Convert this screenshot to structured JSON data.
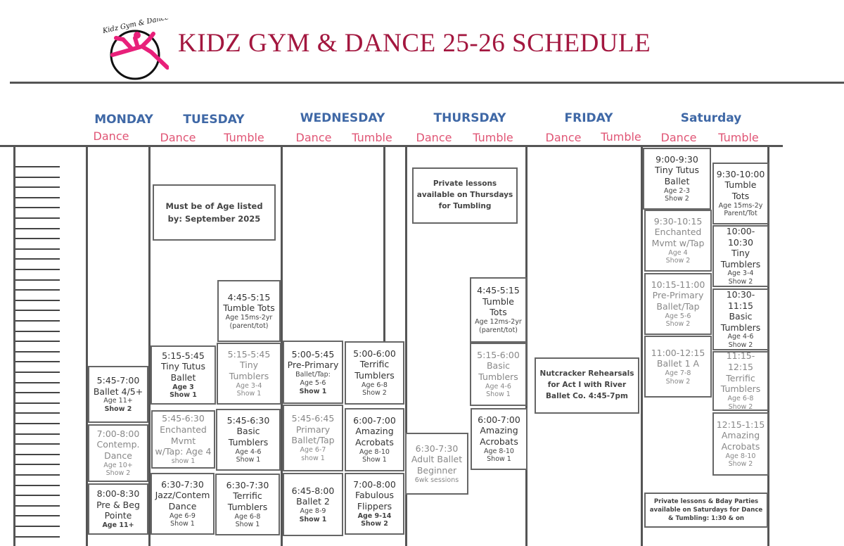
{
  "header": {
    "logo_text": "Kidz Gym & Dance",
    "title": "KIDZ GYM & DANCE 25-26 SCHEDULE"
  },
  "colors": {
    "title": "#a3173f",
    "day": "#3f68a6",
    "sub": "#e05575",
    "logo_pink": "#e8207a"
  },
  "days": [
    {
      "name": "MONDAY",
      "subs": [
        "Dance"
      ]
    },
    {
      "name": "TUESDAY",
      "subs": [
        "Dance",
        "Tumble"
      ]
    },
    {
      "name": "WEDNESDAY",
      "subs": [
        "Dance",
        "Tumble"
      ]
    },
    {
      "name": "THURSDAY",
      "subs": [
        "Dance",
        "Tumble"
      ]
    },
    {
      "name": "FRIDAY",
      "subs": [
        "Dance",
        "Tumble"
      ]
    },
    {
      "name": "Saturday",
      "subs": [
        "Dance",
        "Tumble"
      ]
    }
  ],
  "notes": {
    "tuesday": "Must be of Age listed by: September  2025",
    "thursday": "Private lessons available on Thursdays for Tumbling",
    "friday": "Nutcracker Rehearsals for Act I with River Ballet Co. 4:45-7pm",
    "saturday": "Private lessons & Bday Parties available on Saturdays for Dance & Tumbling: 1:30 & on"
  },
  "classes": [
    {
      "day": "Monday",
      "type": "Dance",
      "lines": [
        "5:45-7:00",
        "Ballet 4/5+",
        "Age 11+",
        "Show 2"
      ]
    },
    {
      "day": "Monday",
      "type": "Dance",
      "lines": [
        "7:00-8:00",
        "Contemp.",
        "Dance",
        "Age 10+",
        "Show 2"
      ]
    },
    {
      "day": "Monday",
      "type": "Dance",
      "lines": [
        "8:00-8:30",
        "Pre & Beg",
        "Pointe",
        "Age 11+"
      ]
    },
    {
      "day": "Tuesday",
      "type": "Dance",
      "lines": [
        "5:15-5:45",
        "Tiny Tutus",
        "Ballet",
        "Age 3",
        "Show 1"
      ]
    },
    {
      "day": "Tuesday",
      "type": "Dance",
      "lines": [
        "5:45-6:30",
        "Enchanted",
        "Mvmt",
        "w/Tap: Age 4",
        "show 1"
      ]
    },
    {
      "day": "Tuesday",
      "type": "Dance",
      "lines": [
        "6:30-7:30",
        "Jazz/Contem",
        "Dance",
        "Age 6-9",
        "Show 1"
      ]
    },
    {
      "day": "Tuesday",
      "type": "Tumble",
      "lines": [
        "4:45-5:15",
        "Tumble Tots",
        "Age 15ms-2yr",
        "(parent/tot)"
      ]
    },
    {
      "day": "Tuesday",
      "type": "Tumble",
      "lines": [
        "5:15-5:45",
        "Tiny",
        "Tumblers",
        "Age 3-4",
        "Show 1"
      ]
    },
    {
      "day": "Tuesday",
      "type": "Tumble",
      "lines": [
        "5:45-6:30",
        "Basic",
        "Tumblers",
        "Age 4-6",
        "Show 1"
      ]
    },
    {
      "day": "Tuesday",
      "type": "Tumble",
      "lines": [
        "6:30-7:30",
        "Terrific",
        "Tumblers",
        "Age 6-8",
        "Show 1"
      ]
    },
    {
      "day": "Wednesday",
      "type": "Dance",
      "lines": [
        "5:00-5:45",
        "Pre-Primary",
        "Ballet/Tap:",
        "Age 5-6",
        "Show 1"
      ]
    },
    {
      "day": "Wednesday",
      "type": "Dance",
      "lines": [
        "5:45-6:45",
        "Primary",
        "Ballet/Tap",
        "Age 6-7",
        "show 1"
      ]
    },
    {
      "day": "Wednesday",
      "type": "Dance",
      "lines": [
        "6:45-8:00",
        "Ballet 2",
        "Age 8-9",
        "Show 1"
      ]
    },
    {
      "day": "Wednesday",
      "type": "Tumble",
      "lines": [
        "5:00-6:00",
        "Terrific",
        "Tumblers",
        "Age 6-8",
        "Show 2"
      ]
    },
    {
      "day": "Wednesday",
      "type": "Tumble",
      "lines": [
        "6:00-7:00",
        "Amazing",
        "Acrobats",
        "Age 8-10",
        "Show 1"
      ]
    },
    {
      "day": "Wednesday",
      "type": "Tumble",
      "lines": [
        "7:00-8:00",
        "Fabulous",
        "Flippers",
        "Age 9-14",
        "Show 2"
      ]
    },
    {
      "day": "Thursday",
      "type": "Dance",
      "lines": [
        "6:30-7:30",
        "Adult Ballet",
        "Beginner",
        "6wk sessions"
      ]
    },
    {
      "day": "Thursday",
      "type": "Tumble",
      "lines": [
        "4:45-5:15",
        "Tumble",
        "Tots",
        "Age 12ms-2yr",
        "(parent/tot)"
      ]
    },
    {
      "day": "Thursday",
      "type": "Tumble",
      "lines": [
        "5:15-6:00",
        "Basic",
        "Tumblers",
        "Age 4-6",
        "Show 1"
      ]
    },
    {
      "day": "Thursday",
      "type": "Tumble",
      "lines": [
        "6:00-7:00",
        "Amazing",
        "Acrobats",
        "Age 8-10",
        "Show 1"
      ]
    },
    {
      "day": "Saturday",
      "type": "Dance",
      "lines": [
        "9:00-9:30",
        "Tiny Tutus",
        "Ballet",
        "Age 2-3",
        "Show 2"
      ]
    },
    {
      "day": "Saturday",
      "type": "Dance",
      "lines": [
        "9:30-10:15",
        "Enchanted",
        "Mvmt w/Tap",
        "Age 4",
        "Show 2"
      ]
    },
    {
      "day": "Saturday",
      "type": "Dance",
      "lines": [
        "10:15-11:00",
        "Pre-Primary",
        "Ballet/Tap",
        "Age 5-6",
        "Show 2"
      ]
    },
    {
      "day": "Saturday",
      "type": "Dance",
      "lines": [
        "11:00-12:15",
        "Ballet 1 A",
        "Age 7-8",
        "Show 2"
      ]
    },
    {
      "day": "Saturday",
      "type": "Tumble",
      "lines": [
        "9:30-10:00",
        "Tumble",
        "Tots",
        "Age 15ms-2y",
        "Parent/Tot"
      ]
    },
    {
      "day": "Saturday",
      "type": "Tumble",
      "lines": [
        "10:00-10:30",
        "Tiny",
        "Tumblers",
        "Age 3-4",
        "Show 2"
      ]
    },
    {
      "day": "Saturday",
      "type": "Tumble",
      "lines": [
        "10:30-11:15",
        "Basic",
        "Tumblers",
        "Age 4-6",
        "Show 2"
      ]
    },
    {
      "day": "Saturday",
      "type": "Tumble",
      "lines": [
        "11:15-12:15",
        "Terrific",
        "Tumblers",
        "Age 6-8",
        "Show 2"
      ]
    },
    {
      "day": "Saturday",
      "type": "Tumble",
      "lines": [
        "12:15-1:15",
        "Amazing",
        "Acrobats",
        "Age 8-10",
        "Show 2"
      ]
    }
  ]
}
